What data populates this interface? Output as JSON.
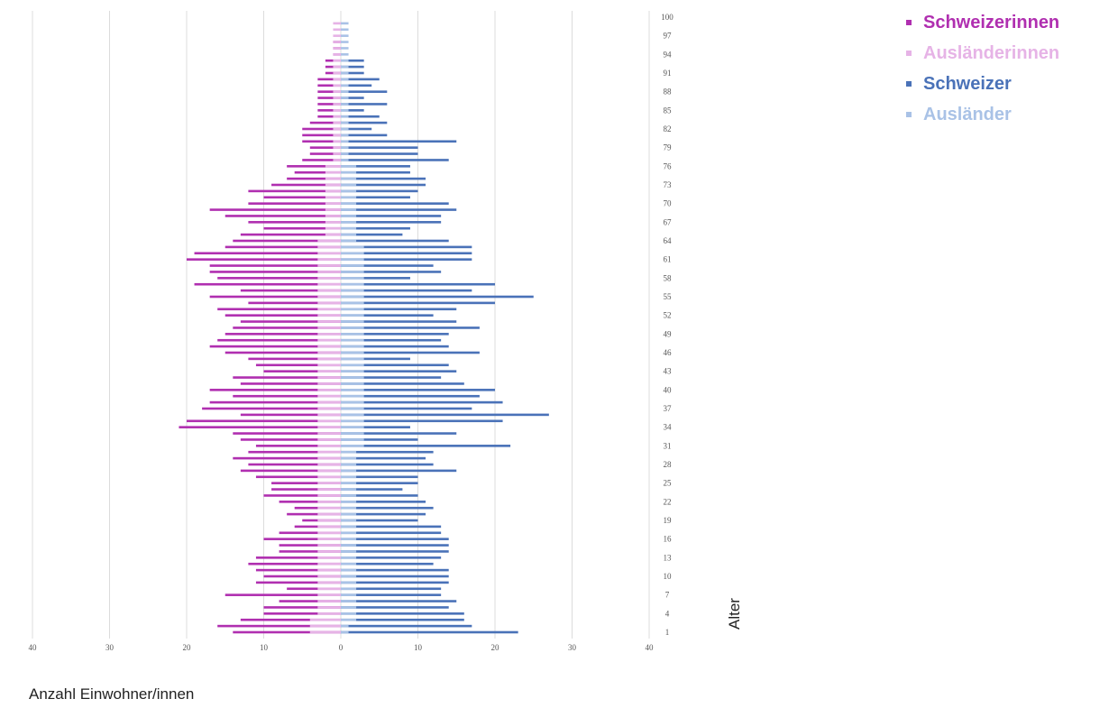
{
  "chart_data": {
    "type": "bar",
    "orientation": "horizontal-population-pyramid",
    "xlabel": "Anzahl Einwohner/innen",
    "ylabel": "Alter",
    "xlim": [
      -40,
      40
    ],
    "x_ticks": [
      40,
      30,
      20,
      10,
      0,
      10,
      20,
      30,
      40
    ],
    "y_ticks": [
      1,
      4,
      7,
      10,
      13,
      16,
      19,
      22,
      25,
      28,
      31,
      34,
      37,
      40,
      43,
      46,
      49,
      52,
      55,
      58,
      61,
      64,
      67,
      70,
      73,
      76,
      79,
      82,
      85,
      88,
      91,
      94,
      97,
      100
    ],
    "grid": true,
    "legend_position": "top-right",
    "ages": [
      1,
      2,
      3,
      4,
      5,
      6,
      7,
      8,
      9,
      10,
      11,
      12,
      13,
      14,
      15,
      16,
      17,
      18,
      19,
      20,
      21,
      22,
      23,
      24,
      25,
      26,
      27,
      28,
      29,
      30,
      31,
      32,
      33,
      34,
      35,
      36,
      37,
      38,
      39,
      40,
      41,
      42,
      43,
      44,
      45,
      46,
      47,
      48,
      49,
      50,
      51,
      52,
      53,
      54,
      55,
      56,
      57,
      58,
      59,
      60,
      61,
      62,
      63,
      64,
      65,
      66,
      67,
      68,
      69,
      70,
      71,
      72,
      73,
      74,
      75,
      76,
      77,
      78,
      79,
      80,
      81,
      82,
      83,
      84,
      85,
      86,
      87,
      88,
      89,
      90,
      91,
      92,
      93,
      94,
      95,
      96,
      97,
      98,
      99,
      100
    ],
    "series": [
      {
        "name": "Schweizerinnen",
        "color": "#b02fb0",
        "side": "left",
        "values": [
          14,
          16,
          13,
          10,
          10,
          8,
          15,
          7,
          11,
          10,
          11,
          12,
          11,
          8,
          8,
          10,
          8,
          6,
          5,
          7,
          6,
          8,
          10,
          9,
          9,
          11,
          13,
          12,
          14,
          12,
          11,
          13,
          14,
          21,
          20,
          13,
          18,
          17,
          14,
          17,
          13,
          14,
          10,
          11,
          12,
          15,
          17,
          16,
          15,
          14,
          13,
          15,
          16,
          12,
          17,
          13,
          19,
          16,
          17,
          17,
          20,
          19,
          15,
          14,
          13,
          10,
          12,
          15,
          17,
          12,
          10,
          12,
          9,
          7,
          6,
          7,
          5,
          4,
          4,
          5,
          5,
          5,
          4,
          3,
          3,
          3,
          3,
          3,
          3,
          3,
          2,
          2,
          2,
          1,
          1,
          1,
          0,
          0,
          0,
          0
        ]
      },
      {
        "name": "Ausländerinnen",
        "color": "#e6b3e6",
        "side": "left",
        "values": [
          4,
          4,
          4,
          3,
          3,
          3,
          3,
          3,
          3,
          3,
          3,
          3,
          3,
          3,
          3,
          3,
          3,
          3,
          3,
          3,
          3,
          3,
          3,
          3,
          3,
          3,
          3,
          3,
          3,
          3,
          3,
          3,
          3,
          3,
          3,
          3,
          3,
          3,
          3,
          3,
          3,
          3,
          3,
          3,
          3,
          3,
          3,
          3,
          3,
          3,
          3,
          3,
          3,
          3,
          3,
          3,
          3,
          3,
          3,
          3,
          3,
          3,
          3,
          3,
          2,
          2,
          2,
          2,
          2,
          2,
          2,
          2,
          2,
          2,
          2,
          2,
          1,
          1,
          1,
          1,
          1,
          1,
          1,
          1,
          1,
          1,
          1,
          1,
          1,
          1,
          1,
          1,
          1,
          1,
          1,
          1,
          1,
          1,
          1,
          0
        ]
      },
      {
        "name": "Schweizer",
        "color": "#4a72b8",
        "side": "right",
        "values": [
          23,
          17,
          16,
          16,
          14,
          15,
          13,
          13,
          14,
          14,
          14,
          12,
          13,
          14,
          14,
          14,
          13,
          13,
          10,
          11,
          12,
          11,
          10,
          8,
          10,
          10,
          15,
          12,
          11,
          12,
          22,
          10,
          15,
          9,
          21,
          27,
          17,
          21,
          18,
          20,
          16,
          13,
          15,
          14,
          9,
          18,
          14,
          13,
          14,
          18,
          15,
          12,
          15,
          20,
          25,
          17,
          20,
          9,
          13,
          12,
          17,
          17,
          17,
          14,
          8,
          9,
          13,
          13,
          15,
          14,
          9,
          10,
          11,
          11,
          9,
          9,
          14,
          10,
          10,
          15,
          6,
          4,
          6,
          5,
          3,
          6,
          3,
          6,
          4,
          5,
          3,
          3,
          3,
          0,
          0,
          0,
          0,
          0,
          0,
          0
        ]
      },
      {
        "name": "Ausländer",
        "color": "#a9c2e6",
        "side": "right",
        "values": [
          1,
          1,
          2,
          2,
          2,
          2,
          2,
          2,
          2,
          2,
          2,
          2,
          2,
          2,
          2,
          2,
          2,
          2,
          2,
          2,
          2,
          2,
          2,
          2,
          2,
          2,
          2,
          2,
          2,
          2,
          3,
          3,
          3,
          3,
          3,
          3,
          3,
          3,
          3,
          3,
          3,
          3,
          3,
          3,
          3,
          3,
          3,
          3,
          3,
          3,
          3,
          3,
          3,
          3,
          3,
          3,
          3,
          3,
          3,
          3,
          3,
          3,
          3,
          2,
          2,
          2,
          2,
          2,
          2,
          2,
          2,
          2,
          2,
          2,
          2,
          2,
          1,
          1,
          1,
          1,
          1,
          1,
          1,
          1,
          1,
          1,
          1,
          1,
          1,
          1,
          1,
          1,
          1,
          1,
          1,
          1,
          1,
          1,
          1,
          0
        ]
      }
    ]
  }
}
